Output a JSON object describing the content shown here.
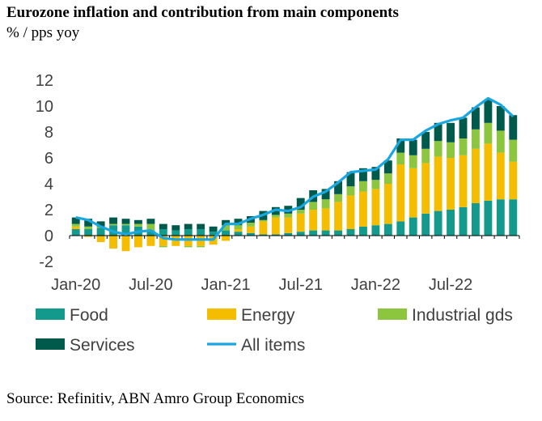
{
  "chart_data": {
    "type": "bar",
    "title": "Eurozone inflation and contribution from main components",
    "subtitle": "% / pps yoy",
    "source": "Source: Refinitiv, ABN Amro Group Economics",
    "ylim": [
      -2,
      12
    ],
    "yticks": [
      12,
      10,
      8,
      6,
      4,
      2,
      0,
      -2
    ],
    "ytick_labels": [
      "12",
      "10",
      "8",
      "6",
      "4",
      "2",
      "0",
      "-2"
    ],
    "xtick_labels": [
      "Jan-20",
      "Jul-20",
      "Jan-21",
      "Jul-21",
      "Jan-22",
      "Jul-22"
    ],
    "xtick_index": [
      0,
      6,
      12,
      18,
      24,
      30
    ],
    "categories": [
      "Jan-20",
      "Feb-20",
      "Mar-20",
      "Apr-20",
      "May-20",
      "Jun-20",
      "Jul-20",
      "Aug-20",
      "Sep-20",
      "Oct-20",
      "Nov-20",
      "Dec-20",
      "Jan-21",
      "Feb-21",
      "Mar-21",
      "Apr-21",
      "May-21",
      "Jun-21",
      "Jul-21",
      "Aug-21",
      "Sep-21",
      "Oct-21",
      "Nov-21",
      "Dec-21",
      "Jan-22",
      "Feb-22",
      "Mar-22",
      "Apr-22",
      "May-22",
      "Jun-22",
      "Jul-22",
      "Aug-22",
      "Sep-22",
      "Oct-22",
      "Nov-22",
      "Dec-22"
    ],
    "series": [
      {
        "name": "Food",
        "color": "#139a8c",
        "values": [
          0.5,
          0.5,
          0.6,
          0.8,
          0.8,
          0.7,
          0.4,
          0.5,
          0.4,
          0.5,
          0.5,
          0.3,
          0.4,
          0.3,
          0.2,
          0.1,
          0.1,
          0.2,
          0.3,
          0.4,
          0.4,
          0.4,
          0.5,
          0.7,
          0.8,
          0.9,
          1.1,
          1.4,
          1.7,
          1.9,
          2.0,
          2.2,
          2.5,
          2.7,
          2.8,
          2.8
        ]
      },
      {
        "name": "Energy",
        "color": "#f5bd00",
        "values": [
          0.2,
          -0.1,
          -0.5,
          -1.0,
          -1.2,
          -0.9,
          -0.8,
          -0.8,
          -0.8,
          -0.8,
          -0.8,
          -0.7,
          -0.4,
          0.2,
          0.5,
          1.0,
          1.3,
          1.2,
          1.4,
          1.6,
          1.7,
          2.2,
          2.6,
          2.7,
          2.8,
          3.1,
          4.4,
          3.8,
          3.9,
          4.2,
          4.0,
          4.0,
          4.2,
          4.4,
          3.6,
          2.9
        ]
      },
      {
        "name": "Industrial gds",
        "color": "#8cc63f",
        "values": [
          0.2,
          0.2,
          0.1,
          0.1,
          0.1,
          0.2,
          0.5,
          -0.1,
          0.0,
          -0.1,
          -0.1,
          0.0,
          0.4,
          0.3,
          0.3,
          0.1,
          0.2,
          0.3,
          0.3,
          0.6,
          0.7,
          0.6,
          0.7,
          0.8,
          0.7,
          0.8,
          0.9,
          1.0,
          1.1,
          1.2,
          1.2,
          1.3,
          1.5,
          1.6,
          1.7,
          1.7
        ]
      },
      {
        "name": "Services",
        "color": "#005a4b",
        "values": [
          0.5,
          0.6,
          0.4,
          0.5,
          0.4,
          0.3,
          0.4,
          0.4,
          0.4,
          0.4,
          0.4,
          0.4,
          0.4,
          0.5,
          0.5,
          0.7,
          0.6,
          0.6,
          0.9,
          0.9,
          0.8,
          1.0,
          1.1,
          1.0,
          1.0,
          1.0,
          1.1,
          1.2,
          1.3,
          1.4,
          1.5,
          1.6,
          1.7,
          1.8,
          1.9,
          1.9
        ]
      },
      {
        "name": "All items",
        "color": "#1aa7e0",
        "type": "line",
        "values": [
          1.4,
          1.2,
          0.7,
          0.3,
          0.1,
          0.3,
          0.4,
          -0.2,
          -0.3,
          -0.3,
          -0.3,
          -0.3,
          0.9,
          0.9,
          1.3,
          1.6,
          2.0,
          1.9,
          2.2,
          3.0,
          3.4,
          4.1,
          4.9,
          5.0,
          5.1,
          5.9,
          7.4,
          7.4,
          8.1,
          8.6,
          8.9,
          9.1,
          9.9,
          10.6,
          10.1,
          9.2
        ]
      }
    ]
  }
}
